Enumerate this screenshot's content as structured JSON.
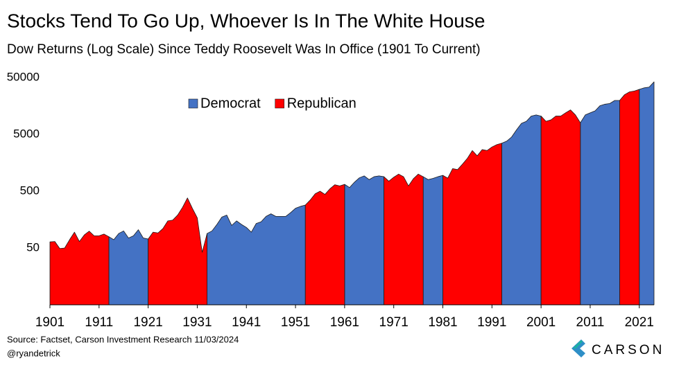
{
  "chart_data": {
    "type": "area",
    "title": "Stocks Tend To Go Up, Whoever Is In The White House",
    "subtitle": "Dow Returns (Log Scale) Since Teddy Roosevelt Was In Office (1901 To Current)",
    "source": "Source: Factset, Carson Investment Research 11/03/2024",
    "credit": "@ryandetrick",
    "brand": "CARSON",
    "log_scale": true,
    "legend": "top",
    "xlim": [
      1901,
      2024
    ],
    "xticks": [
      1901,
      1911,
      1921,
      1931,
      1941,
      1951,
      1961,
      1971,
      1981,
      1991,
      2001,
      2011,
      2021
    ],
    "ylim": [
      5,
      50000
    ],
    "yticks": [
      50,
      500,
      5000,
      50000
    ],
    "x": [
      1901,
      1902,
      1903,
      1904,
      1905,
      1906,
      1907,
      1908,
      1909,
      1910,
      1911,
      1912,
      1913,
      1914,
      1915,
      1916,
      1917,
      1918,
      1919,
      1920,
      1921,
      1922,
      1923,
      1924,
      1925,
      1926,
      1927,
      1928,
      1929,
      1930,
      1931,
      1932,
      1933,
      1934,
      1935,
      1936,
      1937,
      1938,
      1939,
      1940,
      1941,
      1942,
      1943,
      1944,
      1945,
      1946,
      1947,
      1948,
      1949,
      1950,
      1951,
      1952,
      1953,
      1954,
      1955,
      1956,
      1957,
      1958,
      1959,
      1960,
      1961,
      1962,
      1963,
      1964,
      1965,
      1966,
      1967,
      1968,
      1969,
      1970,
      1971,
      1972,
      1973,
      1974,
      1975,
      1976,
      1977,
      1978,
      1979,
      1980,
      1981,
      1982,
      1983,
      1984,
      1985,
      1986,
      1987,
      1988,
      1989,
      1990,
      1991,
      1992,
      1993,
      1994,
      1995,
      1996,
      1997,
      1998,
      1999,
      2000,
      2001,
      2002,
      2003,
      2004,
      2005,
      2006,
      2007,
      2008,
      2009,
      2010,
      2011,
      2012,
      2013,
      2014,
      2015,
      2016,
      2017,
      2018,
      2019,
      2020,
      2021,
      2022,
      2023,
      2024
    ],
    "series": [
      {
        "name": "Democrat",
        "color": "#4472c4",
        "values": [
          null,
          null,
          null,
          null,
          null,
          null,
          null,
          null,
          null,
          null,
          null,
          null,
          79,
          70,
          90,
          100,
          75,
          82,
          105,
          75,
          72,
          null,
          null,
          null,
          null,
          null,
          null,
          null,
          null,
          null,
          null,
          null,
          90,
          100,
          130,
          175,
          190,
          125,
          150,
          130,
          115,
          95,
          135,
          145,
          180,
          200,
          180,
          180,
          180,
          210,
          250,
          270,
          285,
          null,
          null,
          null,
          null,
          null,
          null,
          null,
          660,
          580,
          720,
          860,
          930,
          800,
          900,
          930,
          900,
          null,
          null,
          null,
          null,
          null,
          null,
          null,
          900,
          800,
          840,
          900,
          950,
          null,
          null,
          null,
          null,
          null,
          null,
          null,
          null,
          null,
          null,
          null,
          3500,
          3800,
          4500,
          6000,
          7800,
          8500,
          10500,
          11000,
          10500,
          null,
          null,
          null,
          null,
          null,
          null,
          null,
          8000,
          11000,
          12000,
          13000,
          16000,
          17000,
          17500,
          19800,
          19800,
          null,
          null,
          null,
          31000,
          33000,
          34000,
          42000
        ]
      },
      {
        "name": "Republican",
        "color": "#ff0000",
        "values": [
          64,
          65,
          49,
          50,
          70,
          95,
          65,
          85,
          99,
          82,
          82,
          88,
          79,
          null,
          null,
          null,
          null,
          null,
          null,
          null,
          72,
          95,
          92,
          110,
          150,
          155,
          190,
          260,
          381,
          250,
          170,
          42,
          90,
          null,
          null,
          null,
          null,
          null,
          null,
          null,
          null,
          null,
          null,
          null,
          null,
          null,
          null,
          null,
          null,
          null,
          null,
          null,
          285,
          350,
          450,
          500,
          440,
          550,
          650,
          620,
          660,
          null,
          null,
          null,
          null,
          null,
          null,
          null,
          900,
          750,
          880,
          1000,
          900,
          620,
          830,
          1000,
          900,
          null,
          null,
          null,
          950,
          850,
          1250,
          1200,
          1500,
          1900,
          2600,
          2100,
          2700,
          2600,
          3000,
          3300,
          3500,
          null,
          null,
          null,
          null,
          null,
          null,
          null,
          10500,
          8500,
          9000,
          10500,
          10500,
          12000,
          13500,
          11000,
          8000,
          null,
          null,
          null,
          null,
          null,
          null,
          null,
          19800,
          25000,
          28000,
          29000,
          31000,
          null,
          null,
          null
        ]
      }
    ]
  }
}
